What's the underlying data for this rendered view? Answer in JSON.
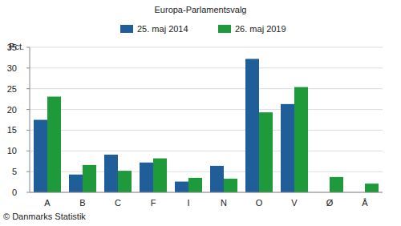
{
  "chart_data": {
    "type": "bar",
    "title": "Europa-Parlamentsvalg",
    "y_label": "Pct.",
    "source": "© Danmarks Statistik",
    "categories": [
      "A",
      "B",
      "C",
      "F",
      "I",
      "N",
      "O",
      "V",
      "Ø",
      "Å"
    ],
    "series": [
      {
        "name": "25. maj 2014",
        "color": "#1f5e99",
        "values": [
          17.5,
          4.3,
          9.1,
          7.2,
          2.6,
          6.4,
          32.2,
          21.3,
          null,
          null
        ]
      },
      {
        "name": "26. maj 2019",
        "color": "#1e9a3b",
        "values": [
          23.1,
          6.6,
          5.2,
          8.2,
          3.5,
          3.3,
          19.3,
          25.4,
          3.7,
          2.1
        ]
      }
    ],
    "ylim": [
      0,
      35
    ],
    "yticks": [
      0,
      5,
      10,
      15,
      20,
      25,
      30,
      35
    ],
    "grid": true,
    "legend": "top"
  }
}
